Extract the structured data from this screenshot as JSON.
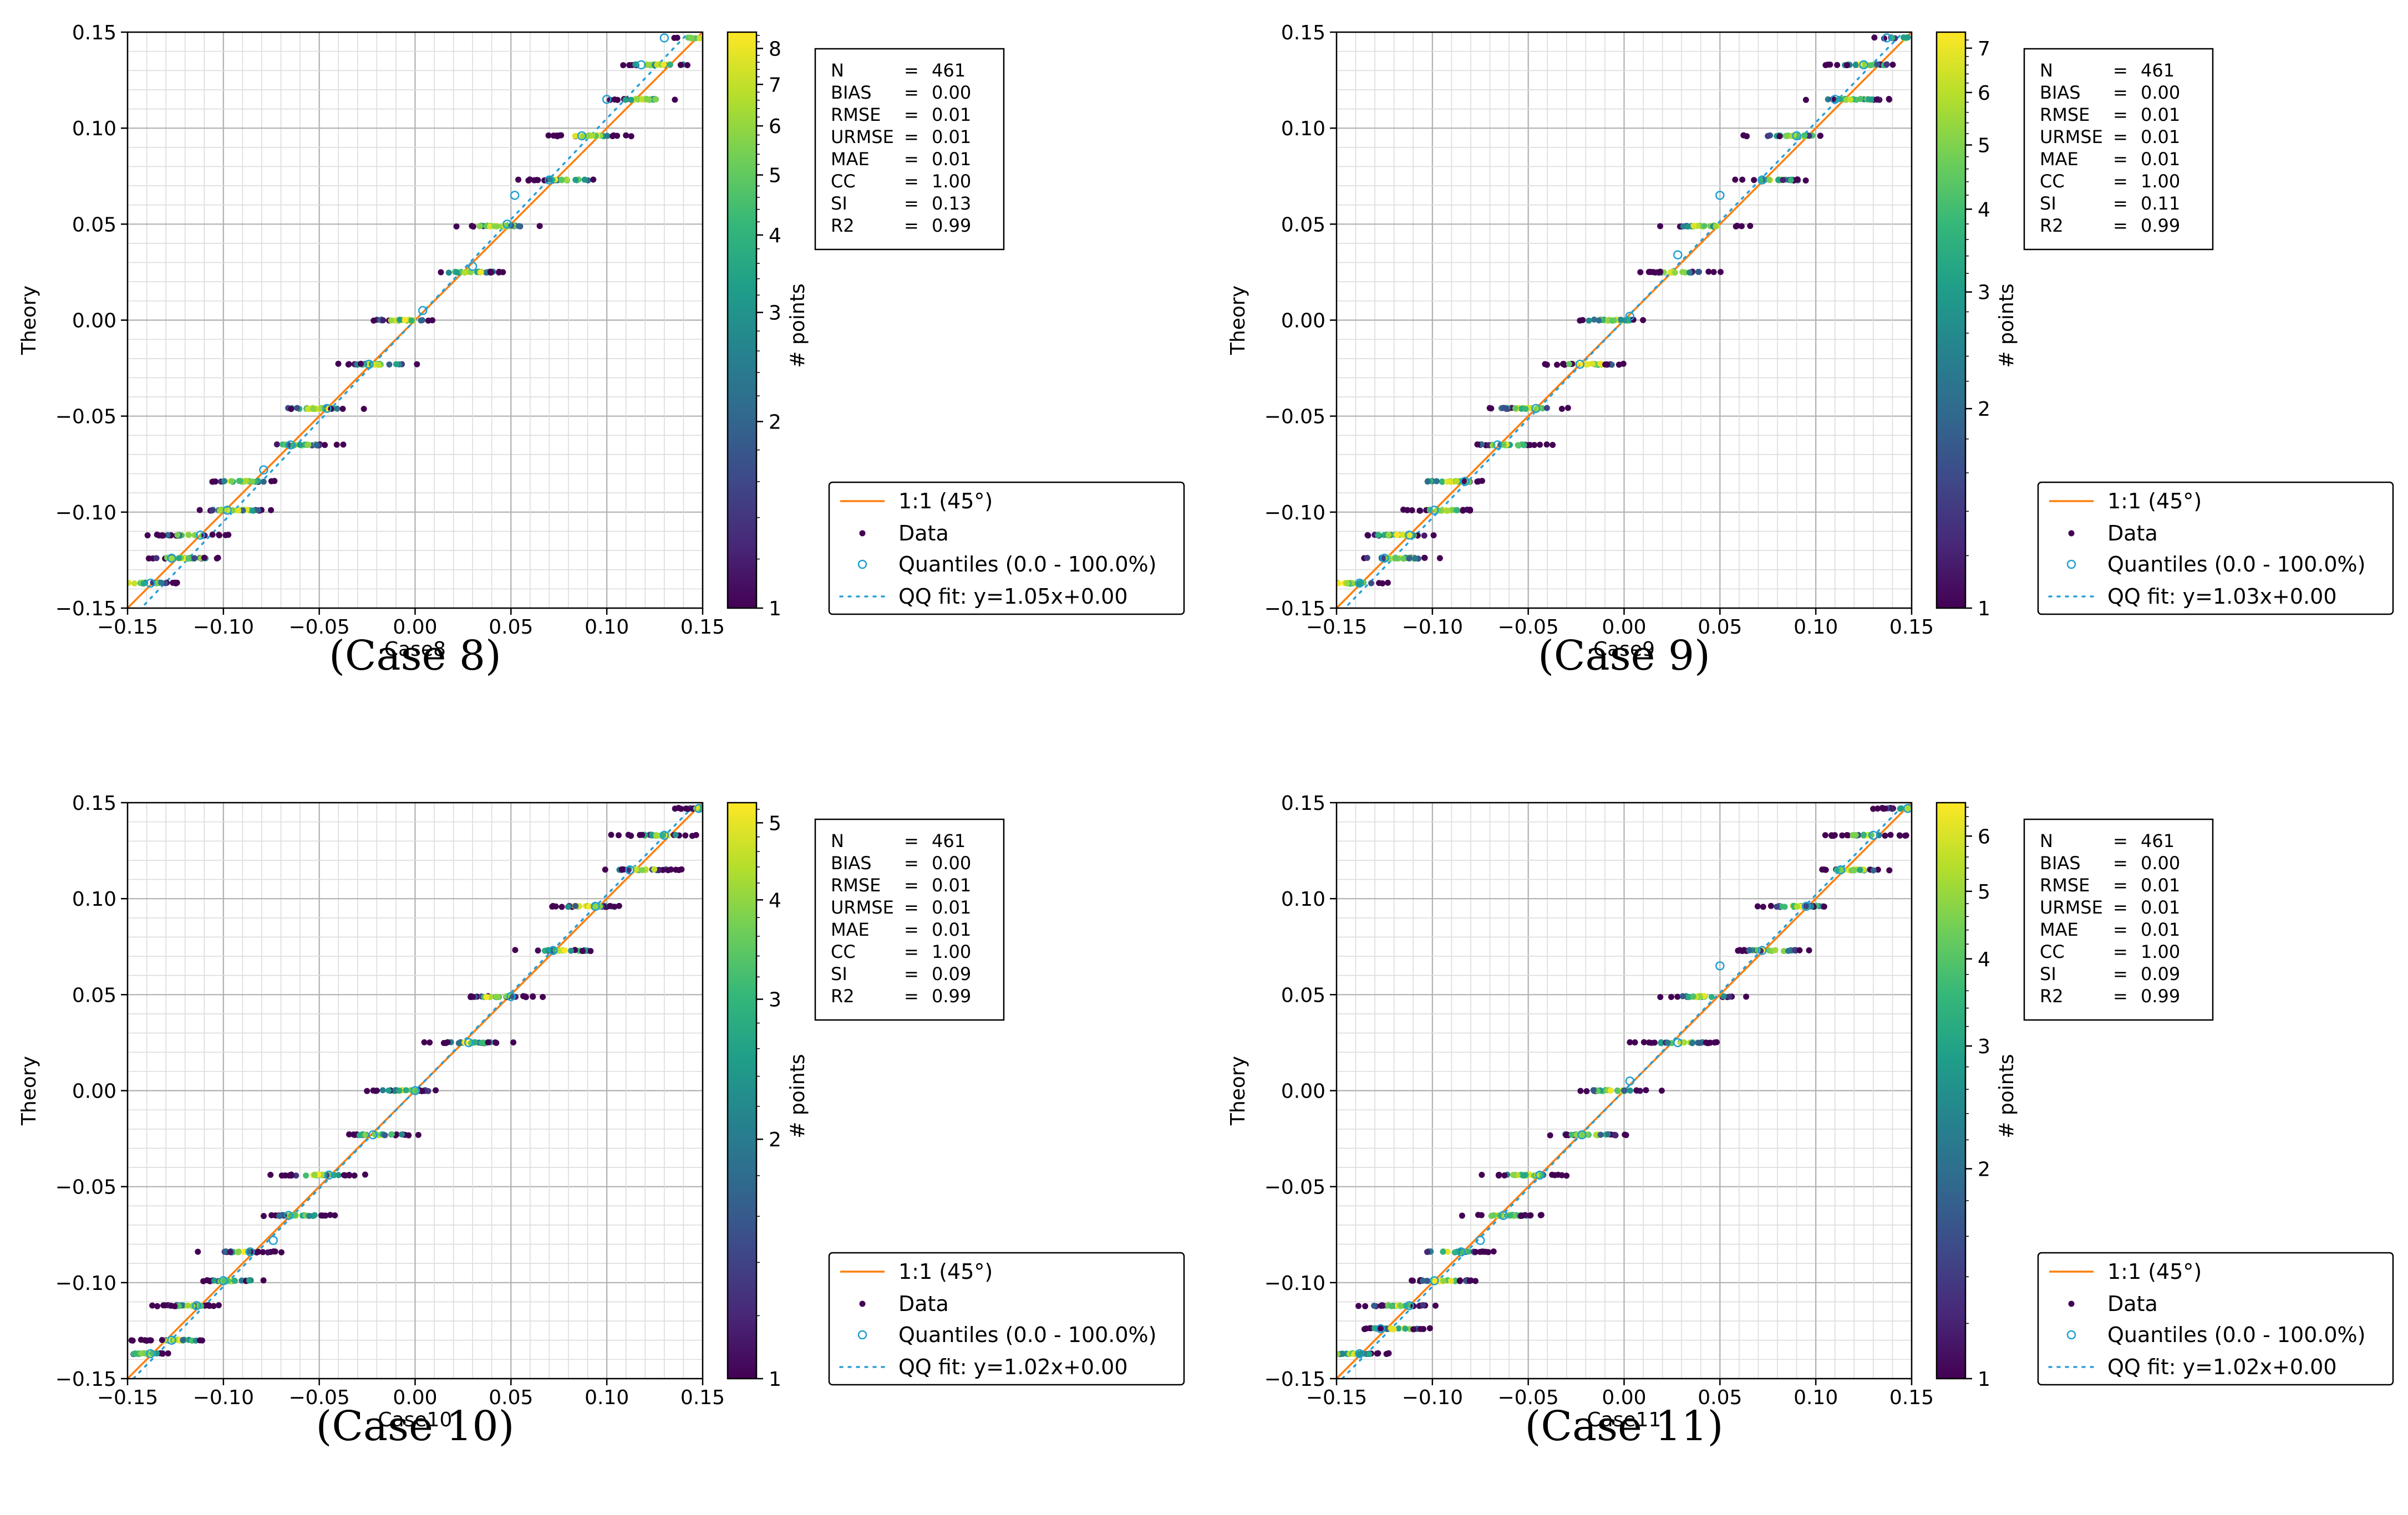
{
  "colors": {
    "line11": "#ff7f0e",
    "quantile": "#1f9fd0",
    "qqfit": "#2a9fd6",
    "viridis": [
      "#440154",
      "#482878",
      "#3e4989",
      "#31688e",
      "#26828e",
      "#1f9e89",
      "#35b779",
      "#6ece58",
      "#b5de2b",
      "#fde725"
    ]
  },
  "chart_data": [
    {
      "type": "scatter",
      "xlabel": "Case8",
      "ylabel": "Theory",
      "caption": "(Case 8)",
      "xlim": [
        -0.15,
        0.15
      ],
      "ylim": [
        -0.15,
        0.15
      ],
      "xticks": [
        "−0.15",
        "−0.10",
        "−0.05",
        "0.00",
        "0.05",
        "0.10",
        "0.15"
      ],
      "yticks": [
        "−0.15",
        "−0.10",
        "−0.05",
        "0.00",
        "0.05",
        "0.10",
        "0.15"
      ],
      "grid": true,
      "colorbar": {
        "label": "# points",
        "ticks": [
          "1",
          "2",
          "3",
          "4",
          "5",
          "6",
          "7",
          "8"
        ],
        "max": 8.5
      },
      "stats": [
        {
          "name": "N",
          "value": "461"
        },
        {
          "name": "BIAS",
          "value": "0.00"
        },
        {
          "name": "RMSE",
          "value": "0.01"
        },
        {
          "name": "URMSE",
          "value": "0.01"
        },
        {
          "name": "MAE",
          "value": "0.01"
        },
        {
          "name": "CC",
          "value": "1.00"
        },
        {
          "name": "SI",
          "value": "0.13"
        },
        {
          "name": "R2",
          "value": "0.99"
        }
      ],
      "legend": {
        "placement": "right",
        "entries": [
          "1:1 (45°)",
          "Data",
          "Quantiles (0.0 - 100.0%)",
          "QQ fit: y=1.05x+0.00"
        ]
      },
      "qq_fit": {
        "slope": 1.05,
        "intercept": 0.0
      },
      "y_levels": [
        -0.137,
        -0.124,
        -0.112,
        -0.099,
        -0.084,
        -0.065,
        -0.046,
        -0.023,
        0.0,
        0.025,
        0.049,
        0.073,
        0.096,
        0.115,
        0.133,
        0.147
      ],
      "quantiles": [
        [
          -0.138,
          -0.137
        ],
        [
          -0.127,
          -0.124
        ],
        [
          -0.112,
          -0.112
        ],
        [
          -0.098,
          -0.099
        ],
        [
          -0.079,
          -0.078
        ],
        [
          -0.065,
          -0.065
        ],
        [
          -0.046,
          -0.046
        ],
        [
          -0.024,
          -0.023
        ],
        [
          0.004,
          0.005
        ],
        [
          0.03,
          0.028
        ],
        [
          0.048,
          0.05
        ],
        [
          0.052,
          0.065
        ],
        [
          0.07,
          0.073
        ],
        [
          0.087,
          0.096
        ],
        [
          0.1,
          0.115
        ],
        [
          0.118,
          0.133
        ],
        [
          0.13,
          0.147
        ]
      ]
    },
    {
      "type": "scatter",
      "xlabel": "Case9",
      "ylabel": "Theory",
      "caption": "(Case 9)",
      "xlim": [
        -0.15,
        0.15
      ],
      "ylim": [
        -0.15,
        0.15
      ],
      "xticks": [
        "−0.15",
        "−0.10",
        "−0.05",
        "0.00",
        "0.05",
        "0.10",
        "0.15"
      ],
      "yticks": [
        "−0.15",
        "−0.10",
        "−0.05",
        "0.00",
        "0.05",
        "0.10",
        "0.15"
      ],
      "grid": true,
      "colorbar": {
        "label": "# points",
        "ticks": [
          "1",
          "2",
          "3",
          "4",
          "5",
          "6",
          "7"
        ],
        "max": 7.4
      },
      "stats": [
        {
          "name": "N",
          "value": "461"
        },
        {
          "name": "BIAS",
          "value": "0.00"
        },
        {
          "name": "RMSE",
          "value": "0.01"
        },
        {
          "name": "URMSE",
          "value": "0.01"
        },
        {
          "name": "MAE",
          "value": "0.01"
        },
        {
          "name": "CC",
          "value": "1.00"
        },
        {
          "name": "SI",
          "value": "0.11"
        },
        {
          "name": "R2",
          "value": "0.99"
        }
      ],
      "legend": {
        "placement": "right",
        "entries": [
          "1:1 (45°)",
          "Data",
          "Quantiles (0.0 - 100.0%)",
          "QQ fit: y=1.03x+0.00"
        ]
      },
      "qq_fit": {
        "slope": 1.03,
        "intercept": 0.0
      },
      "y_levels": [
        -0.137,
        -0.124,
        -0.112,
        -0.099,
        -0.084,
        -0.065,
        -0.046,
        -0.023,
        0.0,
        0.025,
        0.049,
        0.073,
        0.096,
        0.115,
        0.133,
        0.147
      ],
      "quantiles": [
        [
          -0.138,
          -0.137
        ],
        [
          -0.125,
          -0.124
        ],
        [
          -0.112,
          -0.112
        ],
        [
          -0.099,
          -0.099
        ],
        [
          -0.083,
          -0.084
        ],
        [
          -0.066,
          -0.065
        ],
        [
          -0.046,
          -0.046
        ],
        [
          -0.023,
          -0.023
        ],
        [
          0.003,
          0.002
        ],
        [
          0.028,
          0.034
        ],
        [
          0.05,
          0.065
        ],
        [
          0.072,
          0.073
        ],
        [
          0.09,
          0.096
        ],
        [
          0.11,
          0.115
        ],
        [
          0.125,
          0.133
        ],
        [
          0.137,
          0.147
        ]
      ]
    },
    {
      "type": "scatter",
      "xlabel": "Case10",
      "ylabel": "Theory",
      "caption": "(Case 10)",
      "xlim": [
        -0.15,
        0.15
      ],
      "ylim": [
        -0.15,
        0.15
      ],
      "xticks": [
        "−0.15",
        "−0.10",
        "−0.05",
        "0.00",
        "0.05",
        "0.10",
        "0.15"
      ],
      "yticks": [
        "−0.15",
        "−0.10",
        "−0.05",
        "0.00",
        "0.05",
        "0.10",
        "0.15"
      ],
      "grid": true,
      "colorbar": {
        "label": "# points",
        "ticks": [
          "1",
          "2",
          "3",
          "4",
          "5"
        ],
        "max": 5.3
      },
      "stats": [
        {
          "name": "N",
          "value": "461"
        },
        {
          "name": "BIAS",
          "value": "0.00"
        },
        {
          "name": "RMSE",
          "value": "0.01"
        },
        {
          "name": "URMSE",
          "value": "0.01"
        },
        {
          "name": "MAE",
          "value": "0.01"
        },
        {
          "name": "CC",
          "value": "1.00"
        },
        {
          "name": "SI",
          "value": "0.09"
        },
        {
          "name": "R2",
          "value": "0.99"
        }
      ],
      "legend": {
        "placement": "right",
        "entries": [
          "1:1 (45°)",
          "Data",
          "Quantiles (0.0 - 100.0%)",
          "QQ fit: y=1.02x+0.00"
        ]
      },
      "qq_fit": {
        "slope": 1.02,
        "intercept": 0.0
      },
      "y_levels": [
        -0.137,
        -0.13,
        -0.112,
        -0.099,
        -0.084,
        -0.065,
        -0.044,
        -0.023,
        0.0,
        0.025,
        0.049,
        0.073,
        0.096,
        0.115,
        0.133,
        0.147
      ],
      "quantiles": [
        [
          -0.138,
          -0.137
        ],
        [
          -0.127,
          -0.13
        ],
        [
          -0.114,
          -0.112
        ],
        [
          -0.1,
          -0.099
        ],
        [
          -0.086,
          -0.084
        ],
        [
          -0.074,
          -0.078
        ],
        [
          -0.066,
          -0.065
        ],
        [
          -0.045,
          -0.044
        ],
        [
          -0.022,
          -0.023
        ],
        [
          0.0,
          0.0
        ],
        [
          0.028,
          0.025
        ],
        [
          0.05,
          0.049
        ],
        [
          0.072,
          0.073
        ],
        [
          0.094,
          0.096
        ],
        [
          0.112,
          0.115
        ],
        [
          0.13,
          0.133
        ],
        [
          0.148,
          0.147
        ]
      ]
    },
    {
      "type": "scatter",
      "xlabel": "Case11",
      "ylabel": "Theory",
      "caption": "(Case 11)",
      "xlim": [
        -0.15,
        0.15
      ],
      "ylim": [
        -0.15,
        0.15
      ],
      "xticks": [
        "−0.15",
        "−0.10",
        "−0.05",
        "0.00",
        "0.05",
        "0.10",
        "0.15"
      ],
      "yticks": [
        "−0.15",
        "−0.10",
        "−0.05",
        "0.00",
        "0.05",
        "0.10",
        "0.15"
      ],
      "grid": true,
      "colorbar": {
        "label": "# points",
        "ticks": [
          "1",
          "2",
          "3",
          "4",
          "5",
          "6"
        ],
        "max": 6.7
      },
      "stats": [
        {
          "name": "N",
          "value": "461"
        },
        {
          "name": "BIAS",
          "value": "0.00"
        },
        {
          "name": "RMSE",
          "value": "0.01"
        },
        {
          "name": "URMSE",
          "value": "0.01"
        },
        {
          "name": "MAE",
          "value": "0.01"
        },
        {
          "name": "CC",
          "value": "1.00"
        },
        {
          "name": "SI",
          "value": "0.09"
        },
        {
          "name": "R2",
          "value": "0.99"
        }
      ],
      "legend": {
        "placement": "right",
        "entries": [
          "1:1 (45°)",
          "Data",
          "Quantiles (0.0 - 100.0%)",
          "QQ fit: y=1.02x+0.00"
        ]
      },
      "qq_fit": {
        "slope": 1.02,
        "intercept": 0.0
      },
      "y_levels": [
        -0.137,
        -0.124,
        -0.112,
        -0.099,
        -0.084,
        -0.065,
        -0.044,
        -0.023,
        0.0,
        0.025,
        0.049,
        0.073,
        0.096,
        0.115,
        0.133,
        0.147
      ],
      "quantiles": [
        [
          -0.138,
          -0.137
        ],
        [
          -0.127,
          -0.124
        ],
        [
          -0.112,
          -0.112
        ],
        [
          -0.099,
          -0.099
        ],
        [
          -0.085,
          -0.084
        ],
        [
          -0.075,
          -0.078
        ],
        [
          -0.063,
          -0.065
        ],
        [
          -0.044,
          -0.044
        ],
        [
          -0.022,
          -0.023
        ],
        [
          0.003,
          0.005
        ],
        [
          0.028,
          0.025
        ],
        [
          0.05,
          0.065
        ],
        [
          0.072,
          0.073
        ],
        [
          0.095,
          0.096
        ],
        [
          0.113,
          0.115
        ],
        [
          0.13,
          0.133
        ],
        [
          0.148,
          0.147
        ]
      ]
    }
  ]
}
